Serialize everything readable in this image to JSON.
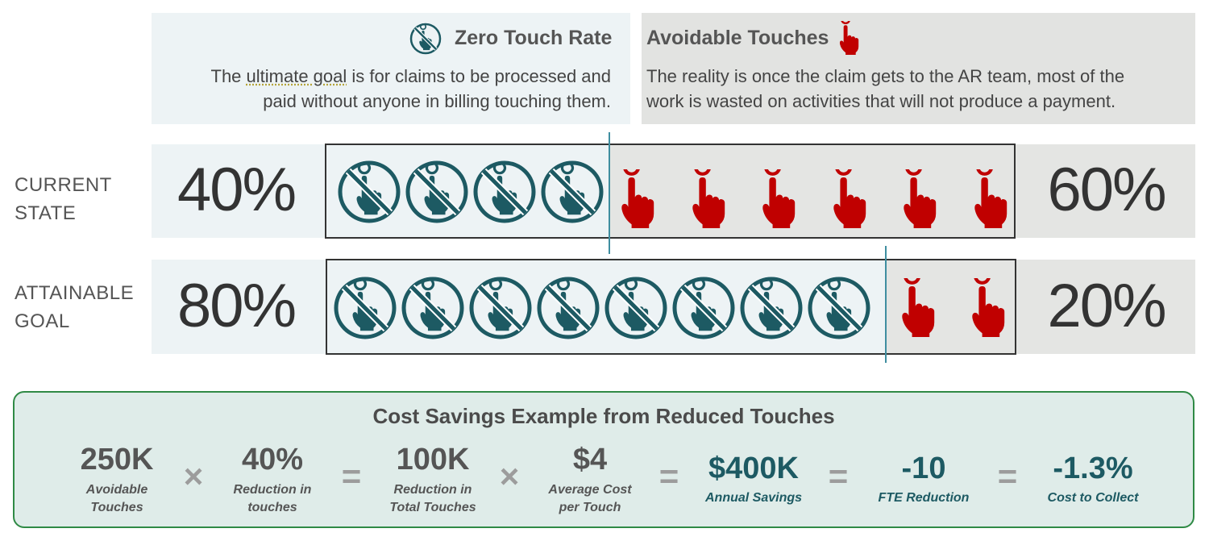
{
  "zero_touch": {
    "title": "Zero Touch Rate",
    "body_line1_pre": "The ",
    "body_line1_underlined": "ultimate goal",
    "body_line1_post": " is for claims to be processed and",
    "body_line2": "paid without anyone in billing touching them."
  },
  "avoidable": {
    "title": "Avoidable Touches",
    "body_line1": "The reality is once the claim gets to the AR team, most of the",
    "body_line2": "work is wasted on activities that will not produce a payment."
  },
  "rows": [
    {
      "label_line1": "CURRENT",
      "label_line2": "STATE",
      "zero_touch_pct": "40%",
      "avoidable_pct": "60%",
      "zero_touch_icons": 4,
      "avoidable_icons": 6
    },
    {
      "label_line1": "ATTAINABLE",
      "label_line2": "GOAL",
      "zero_touch_pct": "80%",
      "avoidable_pct": "20%",
      "zero_touch_icons": 8,
      "avoidable_icons": 2
    }
  ],
  "savings": {
    "title": "Cost Savings Example from Reduced Touches",
    "items": [
      {
        "value": "250K",
        "caption_line1": "Avoidable",
        "caption_line2": "Touches"
      },
      {
        "op": "×"
      },
      {
        "value": "40%",
        "caption_line1": "Reduction in",
        "caption_line2": "touches"
      },
      {
        "op": "="
      },
      {
        "value": "100K",
        "caption_line1": "Reduction in",
        "caption_line2": "Total Touches"
      },
      {
        "op": "×"
      },
      {
        "value": "$4",
        "caption_line1": "Average Cost",
        "caption_line2": "per Touch"
      },
      {
        "op": "="
      },
      {
        "value": "$400K",
        "caption_line1": "Annual Savings"
      },
      {
        "op": "="
      },
      {
        "value": "-10",
        "caption_line1": "FTE Reduction"
      },
      {
        "op": "="
      },
      {
        "value": "-1.3%",
        "caption_line1": "Cost to Collect"
      }
    ]
  },
  "colors": {
    "teal": "#1d5a63",
    "red": "#c00000",
    "green_border": "#2f8a45"
  },
  "icons": {
    "zero_touch": "no-touch-icon",
    "avoidable": "hand-touch-icon"
  }
}
